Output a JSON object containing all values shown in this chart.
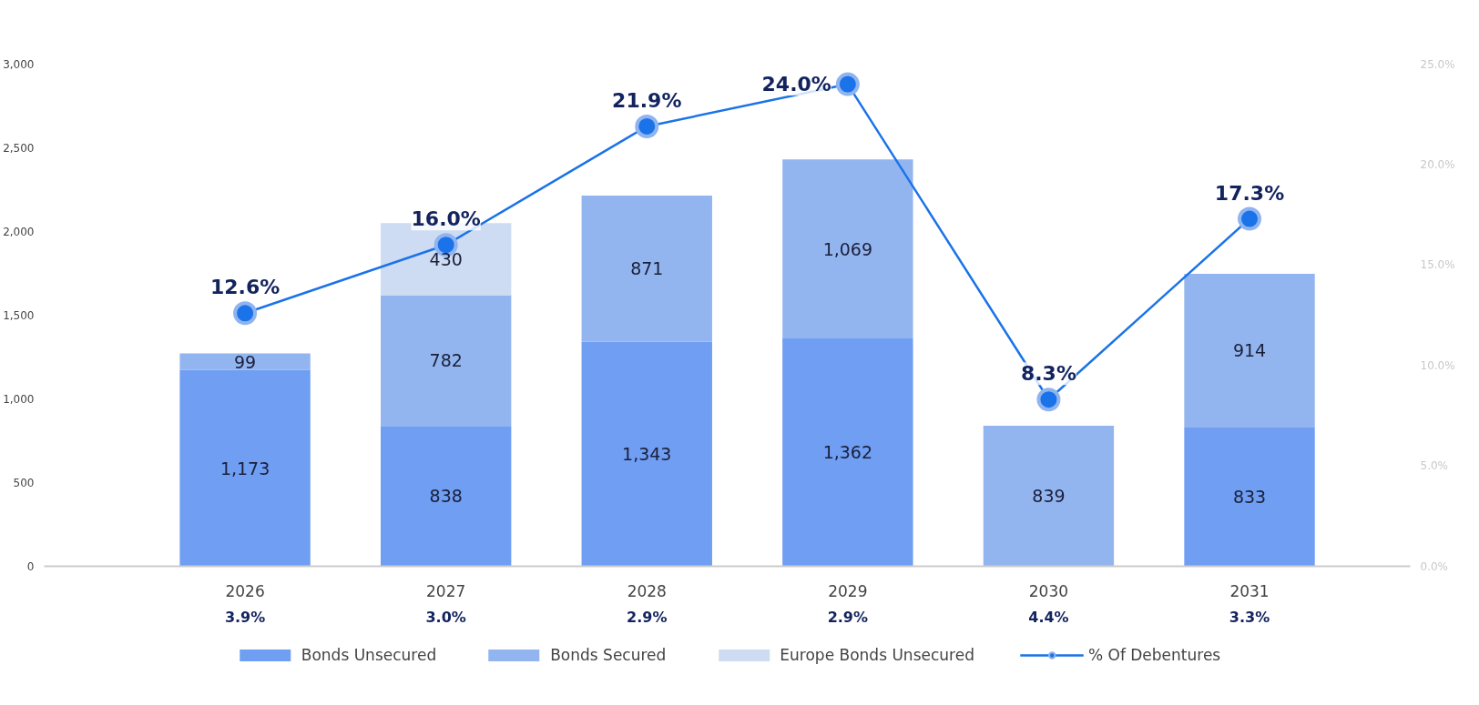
{
  "chart_data": {
    "type": "bar",
    "stacked": true,
    "categories": [
      "2026",
      "2027",
      "2028",
      "2029",
      "2030",
      "2031"
    ],
    "series": [
      {
        "name": "Bonds Unsecured",
        "color": "#6f9ef2",
        "values": [
          1173,
          838,
          1343,
          1362,
          null,
          833
        ],
        "value_labels": [
          "1,173",
          "838",
          "1,343",
          "1,362",
          null,
          "833"
        ]
      },
      {
        "name": "Bonds Secured",
        "color": "#93b5ef",
        "values": [
          99,
          782,
          871,
          1069,
          839,
          914
        ],
        "value_labels": [
          "99",
          "782",
          "871",
          "1,069",
          "839",
          "914"
        ]
      },
      {
        "name": "Europe Bonds Unsecured",
        "color": "#cddcf3",
        "values": [
          null,
          430,
          null,
          null,
          null,
          null
        ],
        "value_labels": [
          null,
          "430",
          null,
          null,
          null,
          null
        ]
      },
      {
        "name": "% Of Debentures",
        "type": "line",
        "axis": "y2",
        "color": "#1a73e8",
        "values": [
          12.6,
          16.0,
          21.9,
          24.0,
          8.3,
          17.3
        ],
        "value_labels": [
          "12.6%",
          "16.0%",
          "21.9%",
          "24.0%",
          "8.3%",
          "17.3%"
        ]
      }
    ],
    "ylim": [
      0,
      3000
    ],
    "yticks": [
      0,
      {
        "value": 500,
        "label": "500"
      },
      {
        "value": 1000,
        "label": "1,000"
      },
      {
        "value": 1500,
        "label": "1,500"
      },
      {
        "value": 2000,
        "label": "2,000"
      },
      {
        "value": 2500,
        "label": "2,500"
      },
      {
        "value": 3000,
        "label": "3,000"
      }
    ],
    "y2lim": [
      0,
      25
    ],
    "y2ticks": [
      {
        "value": 0,
        "label": "0.0%"
      },
      {
        "value": 5,
        "label": "5.0%"
      },
      {
        "value": 10,
        "label": "10.0%"
      },
      {
        "value": 15,
        "label": "15.0%"
      },
      {
        "value": 20,
        "label": "20.0%"
      },
      {
        "value": 25,
        "label": "25.0%"
      }
    ],
    "annotations": [
      "3.9%",
      "3.0%",
      "2.9%",
      "2.9%",
      "4.4%",
      "3.3%"
    ],
    "grid": false,
    "legend": "bottom",
    "marker": "circle",
    "line_style": "solid"
  }
}
